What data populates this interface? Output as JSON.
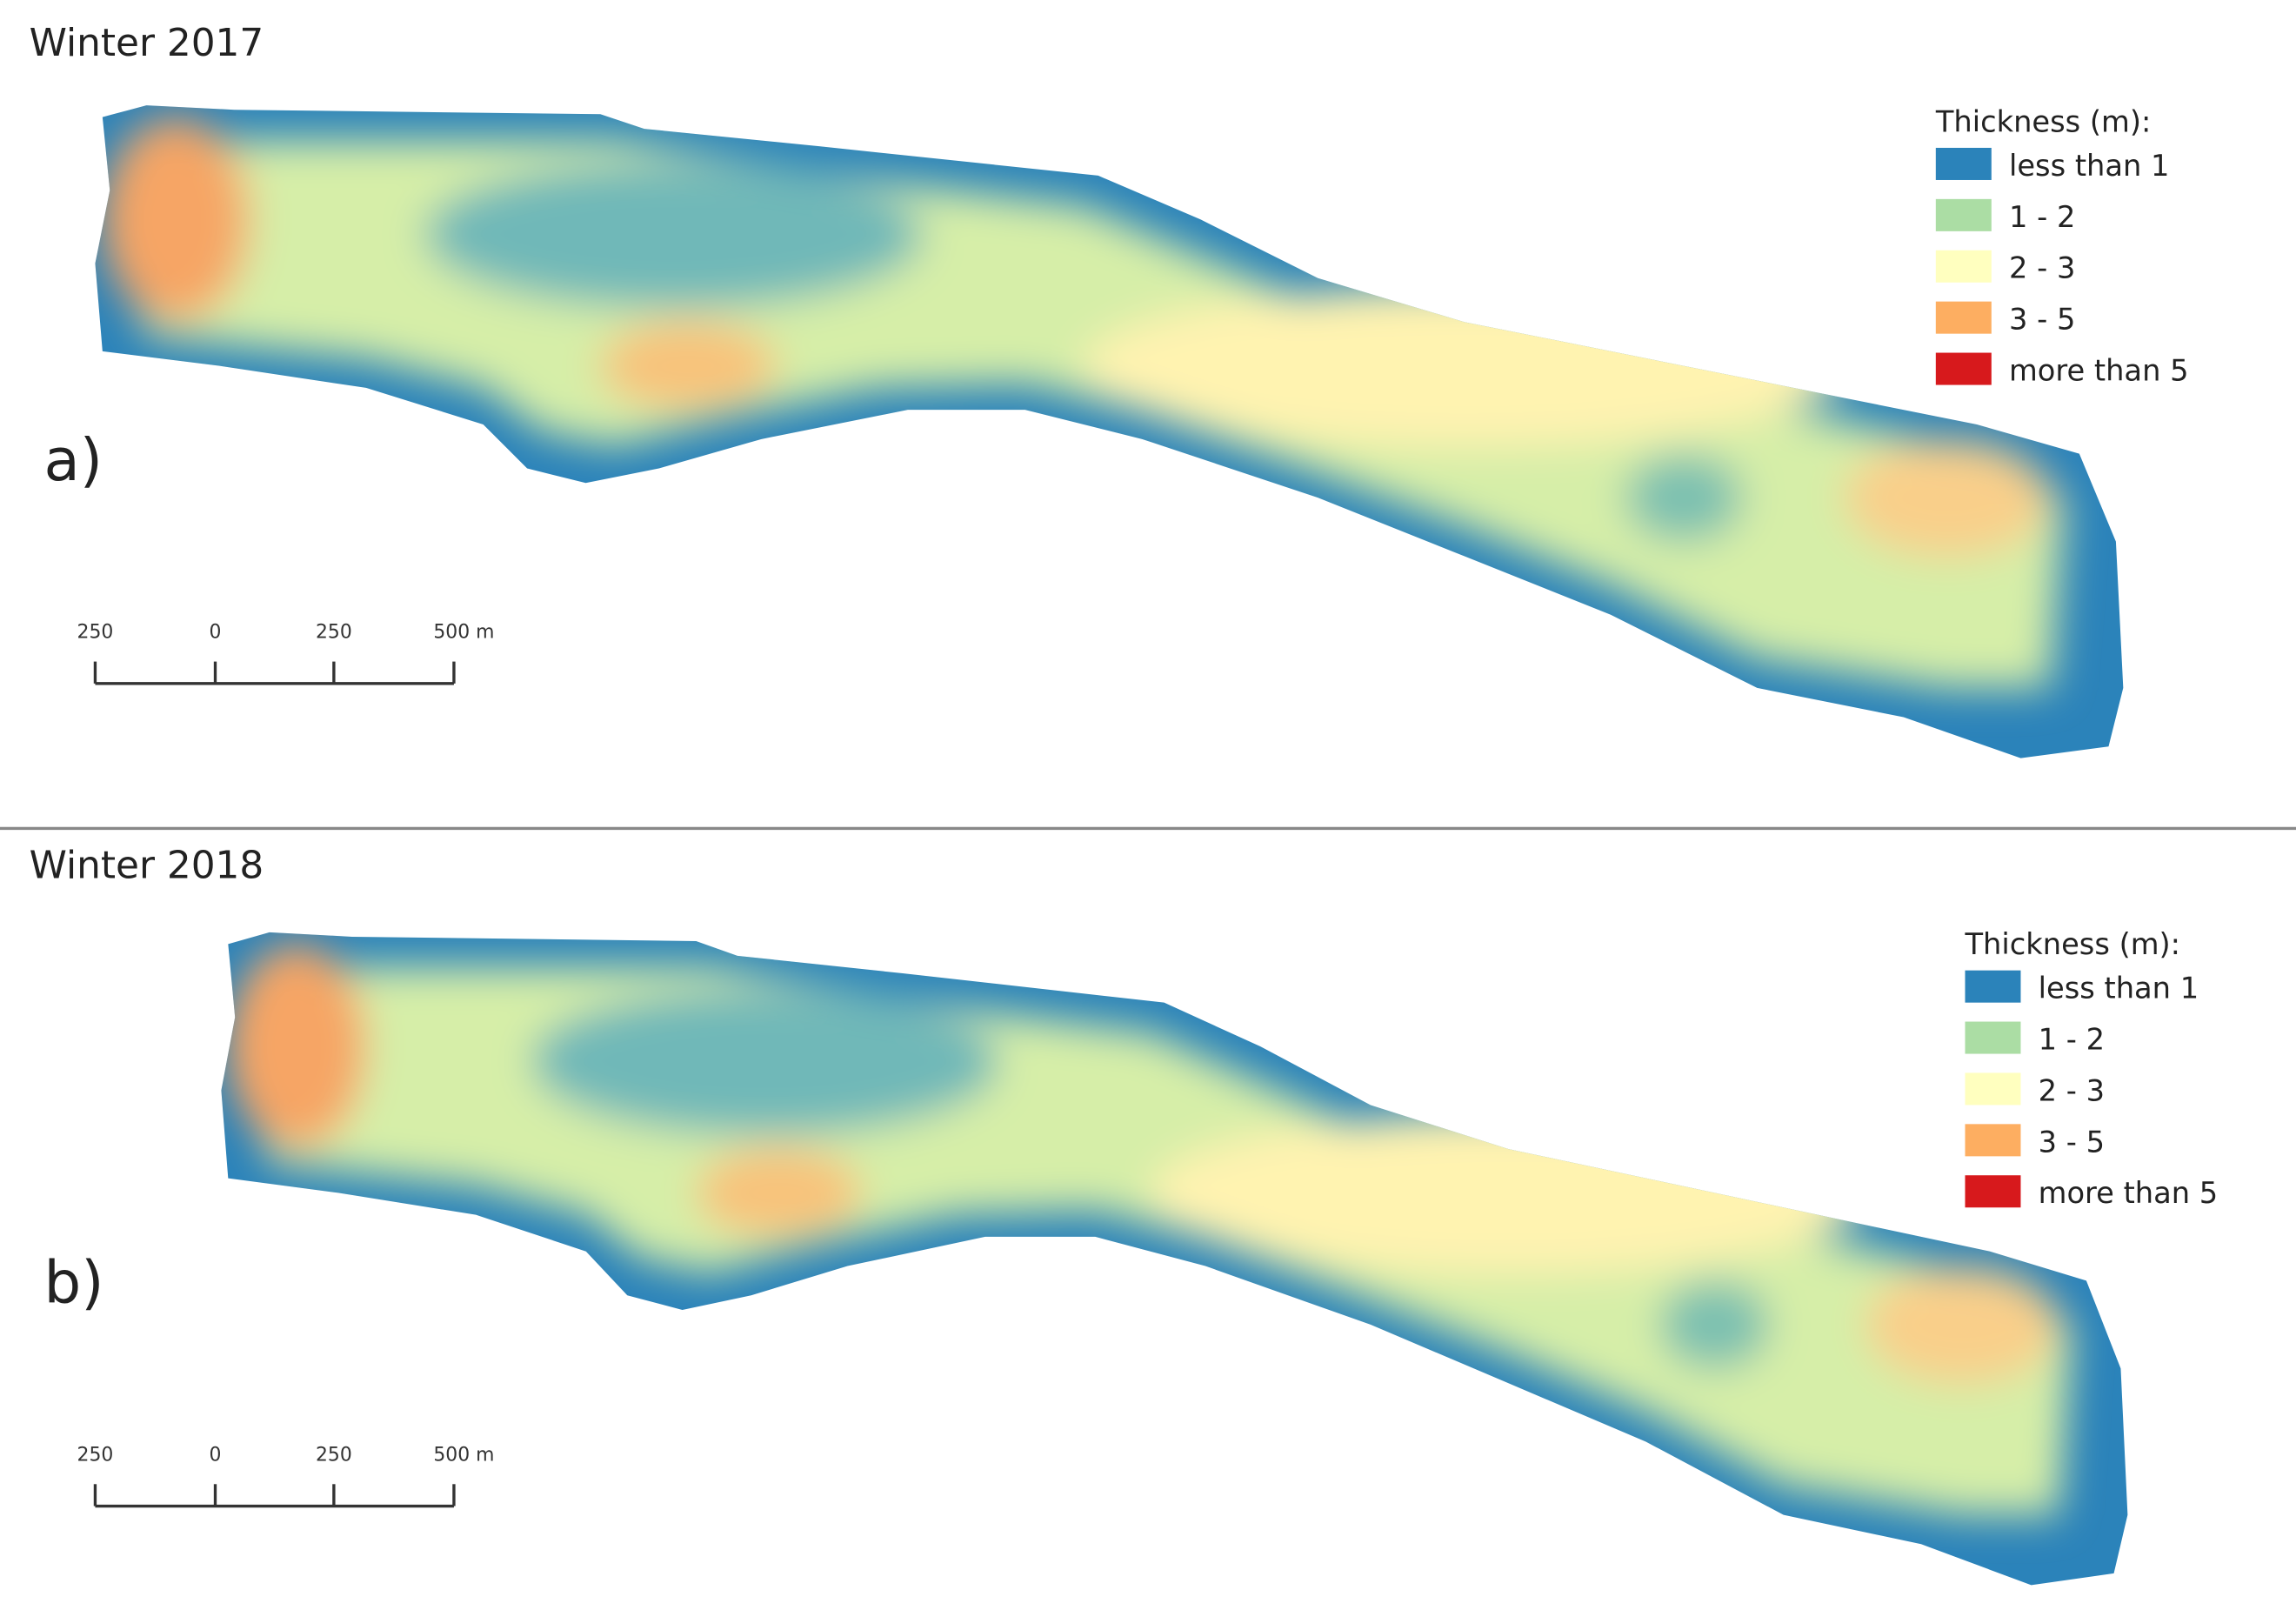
{
  "panels": [
    {
      "title": "Winter 2017",
      "label": "a)",
      "legend": {
        "title": "Thickness (m):",
        "items": [
          {
            "label": "less than 1",
            "color": "#2b83ba"
          },
          {
            "label": "1 - 2",
            "color": "#abdda4"
          },
          {
            "label": "2 - 3",
            "color": "#ffffbf"
          },
          {
            "label": "3 - 5",
            "color": "#fdae61"
          },
          {
            "label": "more than 5",
            "color": "#d7191c"
          }
        ]
      },
      "scale_bar": {
        "labels": [
          "250",
          "0",
          "250",
          "500 m"
        ]
      }
    },
    {
      "title": "Winter 2018",
      "label": "b)",
      "legend": {
        "title": "Thickness (m):",
        "items": [
          {
            "label": "less than 1",
            "color": "#2b83ba"
          },
          {
            "label": "1 - 2",
            "color": "#abdda4"
          },
          {
            "label": "2 - 3",
            "color": "#ffffbf"
          },
          {
            "label": "3 - 5",
            "color": "#fdae61"
          },
          {
            "label": "more than 5",
            "color": "#d7191c"
          }
        ]
      },
      "scale_bar": {
        "labels": [
          "250",
          "0",
          "250",
          "500 m"
        ]
      }
    }
  ]
}
